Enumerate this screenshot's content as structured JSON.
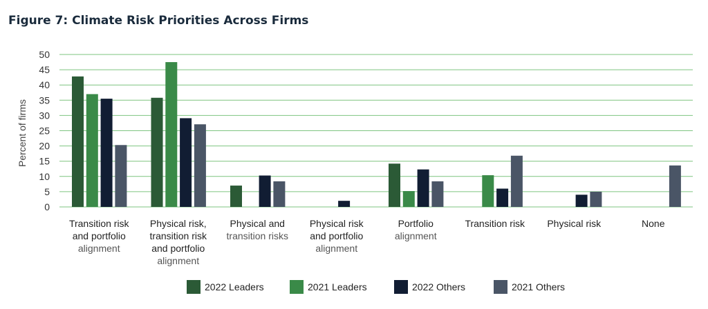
{
  "chart_data": {
    "type": "bar",
    "title": "Figure 7: Climate Risk Priorities Across Firms",
    "ylabel": "Percent of firms",
    "xlabel": "",
    "ylim": [
      0,
      50
    ],
    "yticks": [
      0,
      5,
      10,
      15,
      20,
      25,
      30,
      35,
      40,
      45,
      50
    ],
    "grid": true,
    "legend_position": "bottom",
    "categories": [
      "Transition risk and portfolio alignment",
      "Physical risk, transition risk and portfolio alignment",
      "Physical and transition risks",
      "Physical risk and portfolio alignment",
      "Portfolio alignment",
      "Transition risk",
      "Physical risk",
      "None"
    ],
    "category_lines": [
      [
        "Transition risk",
        "and portfolio",
        "alignment"
      ],
      [
        "Physical risk,",
        "transition risk",
        "and portfolio",
        "alignment"
      ],
      [
        "Physical and",
        "transition risks"
      ],
      [
        "Physical risk",
        "and portfolio",
        "alignment"
      ],
      [
        "Portfolio",
        "alignment"
      ],
      [
        "Transition risk"
      ],
      [
        "Physical risk"
      ],
      [
        "None"
      ]
    ],
    "series": [
      {
        "name": "2022 Leaders",
        "color": "#2b5a36",
        "values": [
          42.8,
          35.8,
          7.0,
          null,
          14.2,
          null,
          null,
          null
        ]
      },
      {
        "name": "2021 Leaders",
        "color": "#3a8a48",
        "values": [
          37.0,
          47.5,
          null,
          null,
          5.2,
          10.4,
          null,
          null
        ]
      },
      {
        "name": "2022 Others",
        "color": "#111d33",
        "values": [
          35.5,
          29.1,
          10.3,
          2.0,
          12.3,
          6.0,
          4.0,
          null
        ]
      },
      {
        "name": "2021 Others",
        "color": "#4a5566",
        "values": [
          20.3,
          27.1,
          8.4,
          null,
          8.4,
          16.8,
          5.0,
          13.6
        ]
      }
    ],
    "gridline_color": "#7dc47f"
  }
}
